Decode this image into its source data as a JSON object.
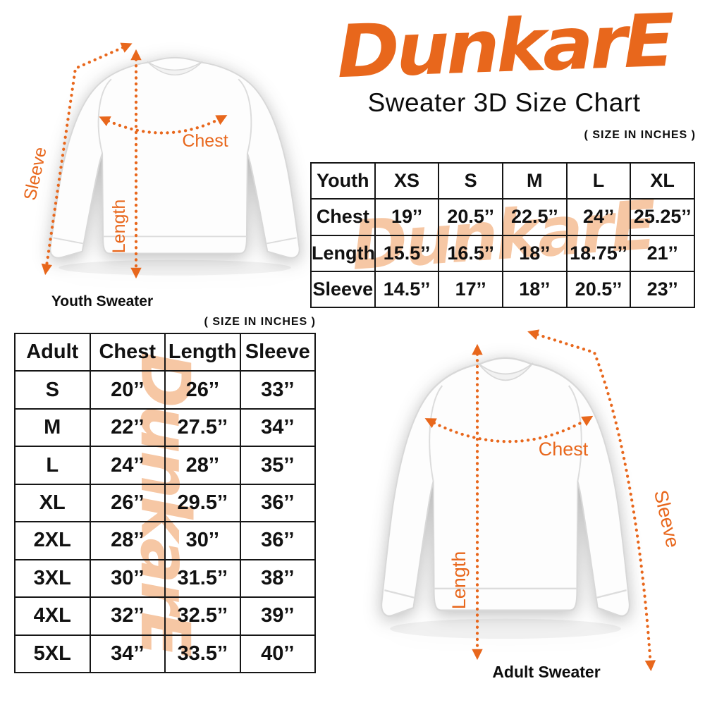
{
  "brand": {
    "logo": "DunkarE",
    "title": "Sweater 3D Size Chart"
  },
  "watermark_text": "DunkarE",
  "youth_table": {
    "size_note": "( SIZE IN INCHES )",
    "header": [
      "Youth",
      "XS",
      "S",
      "M",
      "L",
      "XL"
    ],
    "rows": [
      [
        "Chest",
        "19’’",
        "20.5’’",
        "22.5’’",
        "24’’",
        "25.25’’"
      ],
      [
        "Length",
        "15.5’’",
        "16.5’’",
        "18’’",
        "18.75’’",
        "21’’"
      ],
      [
        "Sleeve",
        "14.5’’",
        "17’’",
        "18’’",
        "20.5’’",
        "23’’"
      ]
    ]
  },
  "adult_table": {
    "size_note": "( SIZE IN INCHES )",
    "header": [
      "Adult",
      "Chest",
      "Length",
      "Sleeve"
    ],
    "rows": [
      [
        "S",
        "20’’",
        "26’’",
        "33’’"
      ],
      [
        "M",
        "22’’",
        "27.5’’",
        "34’’"
      ],
      [
        "L",
        "24’’",
        "28’’",
        "35’’"
      ],
      [
        "XL",
        "26’’",
        "29.5’’",
        "36’’"
      ],
      [
        "2XL",
        "28’’",
        "30’’",
        "36’’"
      ],
      [
        "3XL",
        "30’’",
        "31.5’’",
        "38’’"
      ],
      [
        "4XL",
        "32’’",
        "32.5’’",
        "39’’"
      ],
      [
        "5XL",
        "34’’",
        "33.5’’",
        "40’’"
      ]
    ]
  },
  "youth_diagram": {
    "caption": "Youth Sweater",
    "chest_label": "Chest",
    "length_label": "Length",
    "sleeve_label": "Sleeve"
  },
  "adult_diagram": {
    "caption": "Adult Sweater",
    "chest_label": "Chest",
    "length_label": "Length",
    "sleeve_label": "Sleeve"
  },
  "colors": {
    "accent": "#e8671c",
    "watermark": "#f6c7a4",
    "text": "#111111",
    "border": "#161616"
  }
}
